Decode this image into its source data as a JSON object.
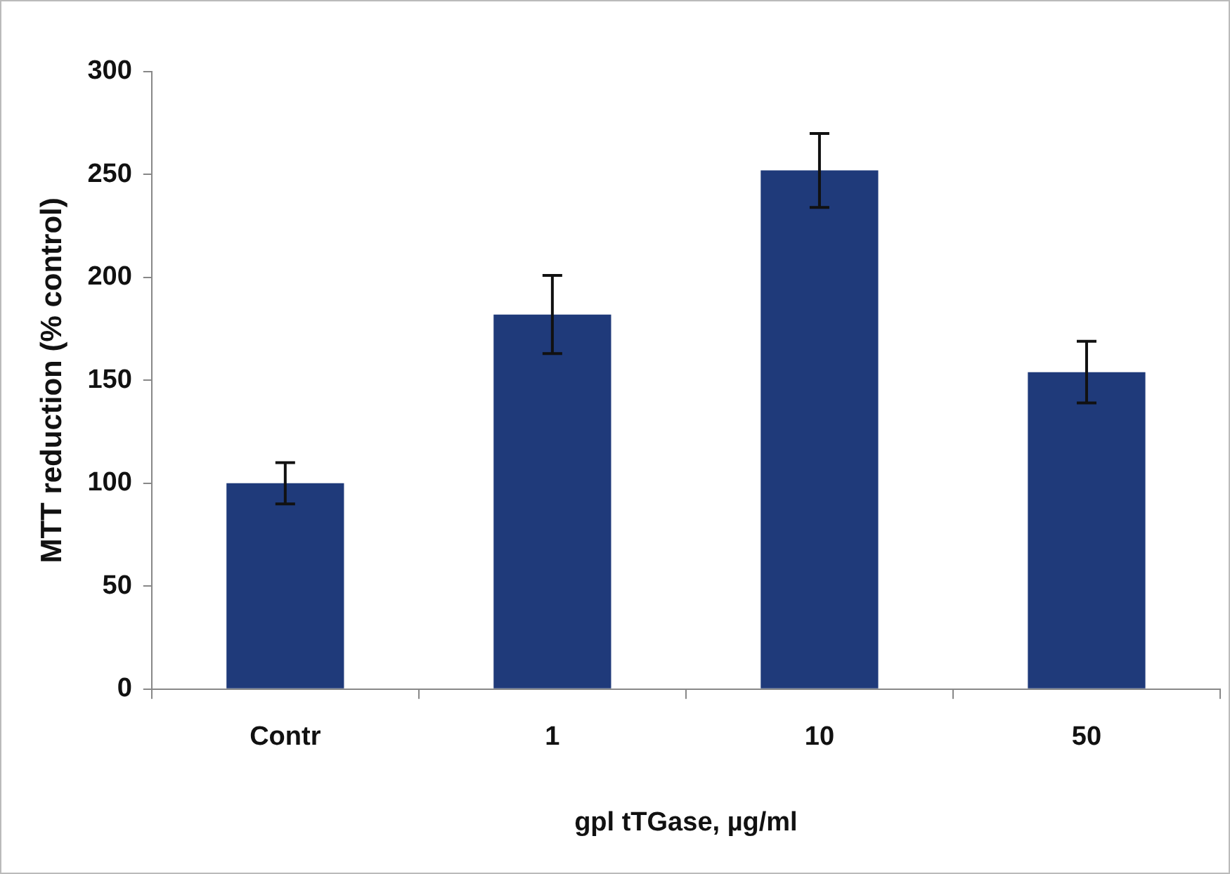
{
  "chart_data": {
    "type": "bar",
    "xlabel": "gpl tTGase, µg/ml",
    "ylabel": "MTT reduction (% control)",
    "categories": [
      "Contr",
      "1",
      "10",
      "50"
    ],
    "values": [
      100,
      182,
      252,
      154
    ],
    "errors": [
      10,
      19,
      18,
      15
    ],
    "color": "#1f3a7a",
    "ylim": [
      0,
      300
    ],
    "yticks": [
      0,
      50,
      100,
      150,
      200,
      250,
      300
    ],
    "grid": false,
    "legend": false
  }
}
